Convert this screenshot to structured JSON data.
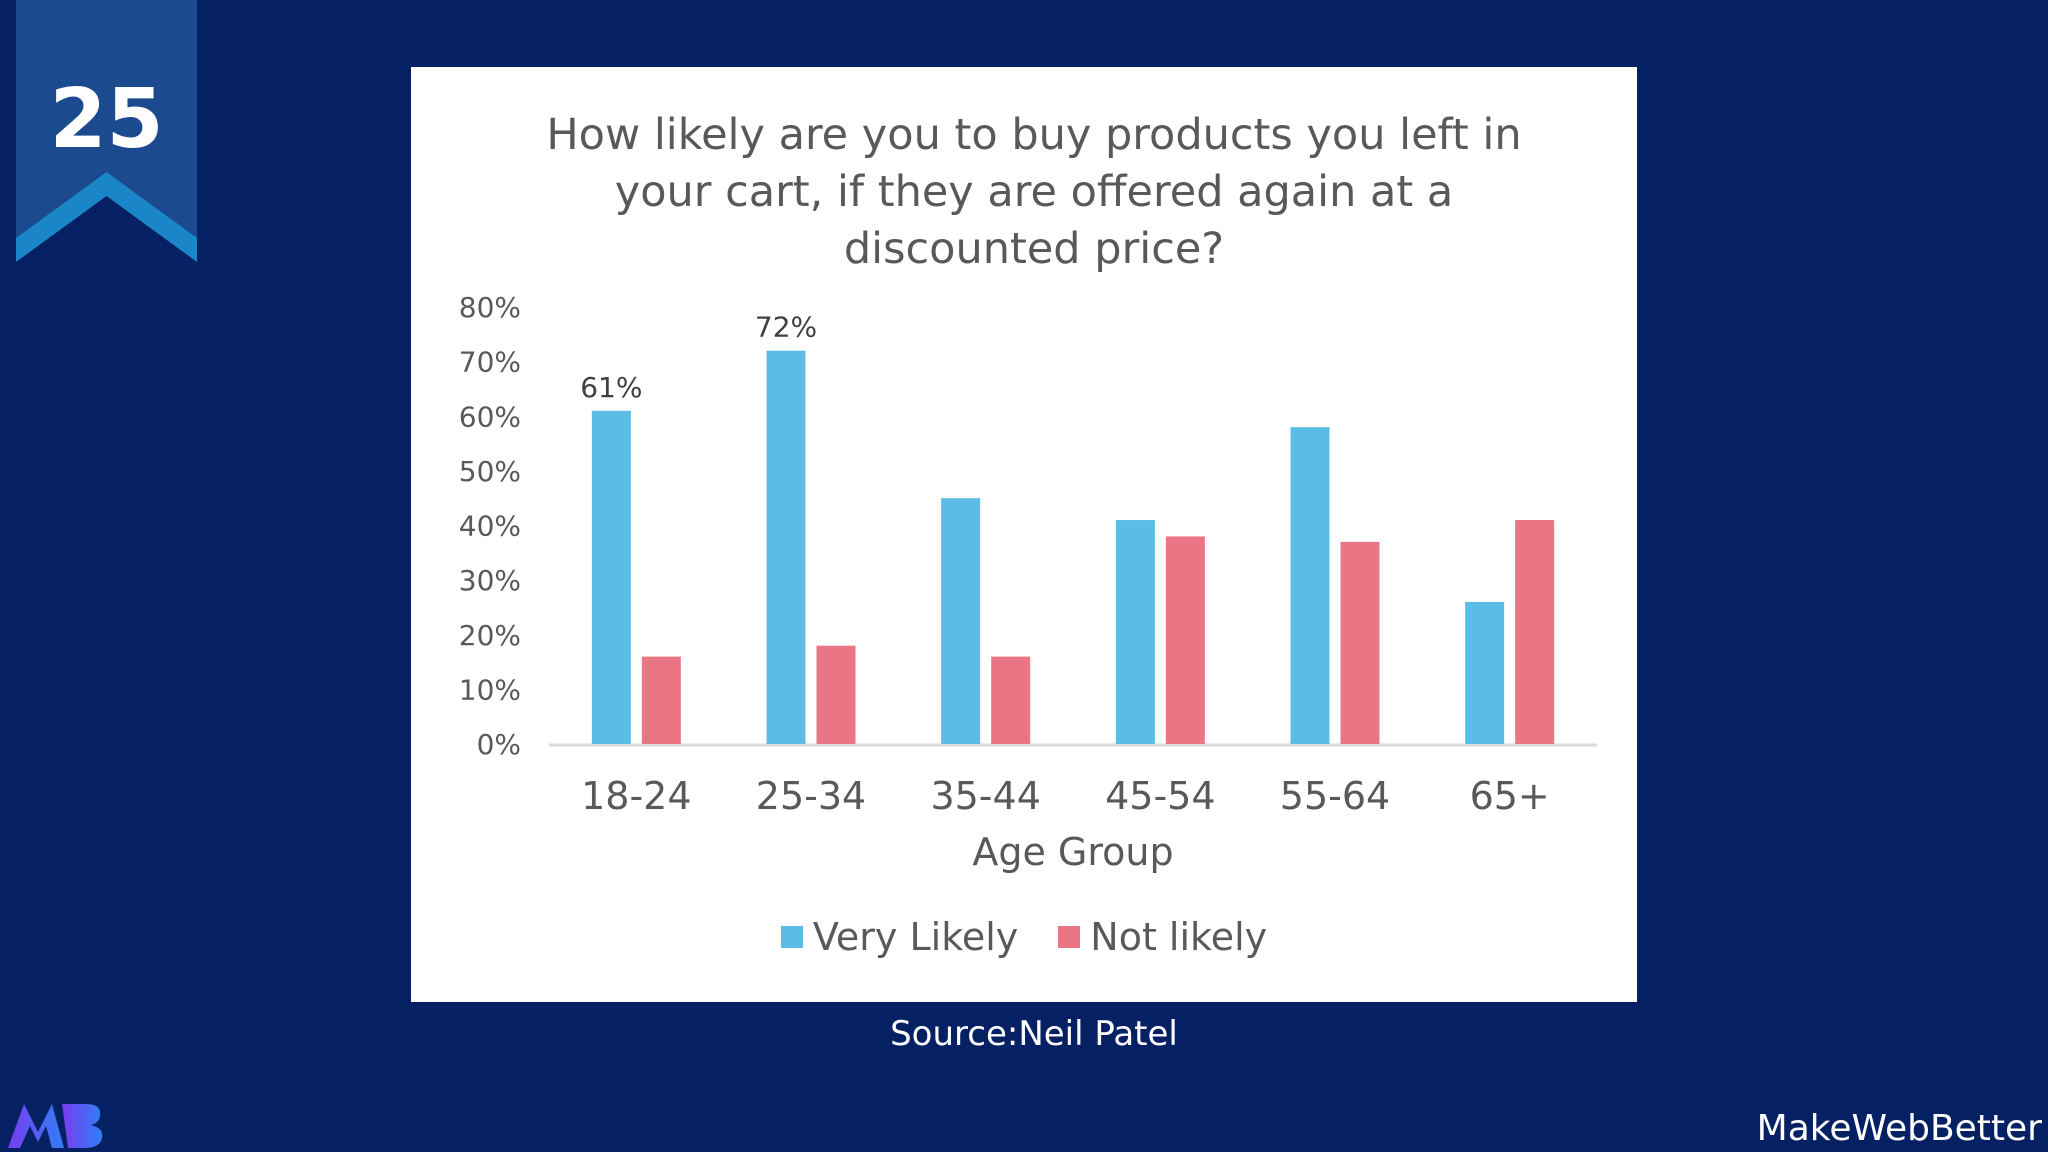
{
  "slide": {
    "number": "25",
    "source": "Source:Neil Patel",
    "brand": "MakeWebBetter",
    "colors": {
      "background": "#062163",
      "badge": "#1b4a8e",
      "badge_chevron": "#1a86c8"
    }
  },
  "chart_data": {
    "type": "bar",
    "title": [
      "How likely are you to buy products you left in",
      "your cart, if they are offered again at a",
      "discounted price?"
    ],
    "xlabel": "Age Group",
    "ylabel": "",
    "categories": [
      "18-24",
      "25-34",
      "35-44",
      "45-54",
      "55-64",
      "65+"
    ],
    "series": [
      {
        "name": "Very Likely",
        "color": "#5bbde6",
        "values": [
          61,
          72,
          45,
          41,
          58,
          26
        ]
      },
      {
        "name": "Not likely",
        "color": "#ea7585",
        "values": [
          16,
          18,
          16,
          38,
          37,
          41
        ]
      }
    ],
    "ylim": [
      0,
      80
    ],
    "yticks": [
      "0%",
      "10%",
      "20%",
      "30%",
      "40%",
      "50%",
      "60%",
      "70%",
      "80%"
    ],
    "data_labels": [
      {
        "series": 0,
        "index": 0,
        "text": "61%"
      },
      {
        "series": 0,
        "index": 1,
        "text": "72%"
      }
    ],
    "grid": false,
    "legend": "bottom"
  }
}
